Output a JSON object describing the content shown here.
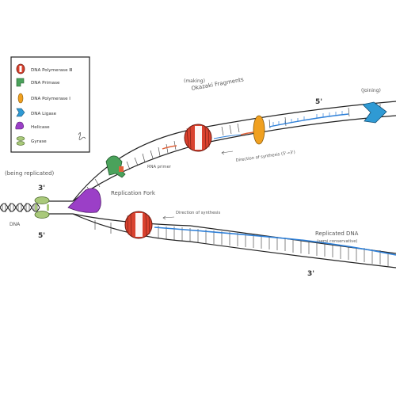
{
  "legend": {
    "items": [
      {
        "label": "DNA Polymerase Ⅲ",
        "icon": "dna-polymerase-iii-icon",
        "color": "#d9412e"
      },
      {
        "label": "DNA Primase",
        "icon": "dna-primase-icon",
        "color": "#4aa25b"
      },
      {
        "label": "DNA Polymerase Ⅰ",
        "icon": "dna-polymerase-i-icon",
        "color": "#f0a020"
      },
      {
        "label": "DNA Ligase",
        "icon": "dna-ligase-icon",
        "color": "#2f9ad4"
      },
      {
        "label": "Helicase",
        "icon": "helicase-icon",
        "color": "#9b3fc7"
      },
      {
        "label": "Gyrase",
        "icon": "gyrase-icon",
        "color": "#a9c97a"
      }
    ]
  },
  "labels": {
    "being_replicated": "(being replicated)",
    "dna": "DNA",
    "three_prime_left": "3'",
    "five_prime_left": "5'",
    "making": "(making)",
    "okazaki": "Okazaki Fragments",
    "joining": "(Joining)",
    "five_prime_top": "5'",
    "rna_primer": "RNA primer",
    "direction_top": "Direction of synthesis (5'→3')",
    "replication_fork": "Replication Fork",
    "direction_bottom": "Direction of synthesis",
    "replicated_dna": "Replicated DNA",
    "semi_conservative": "(semi conservative)",
    "three_prime_bottom": "3'"
  },
  "colors": {
    "strand": "#222222",
    "new_strand": "#2f80d8",
    "primer": "#e0623a"
  }
}
